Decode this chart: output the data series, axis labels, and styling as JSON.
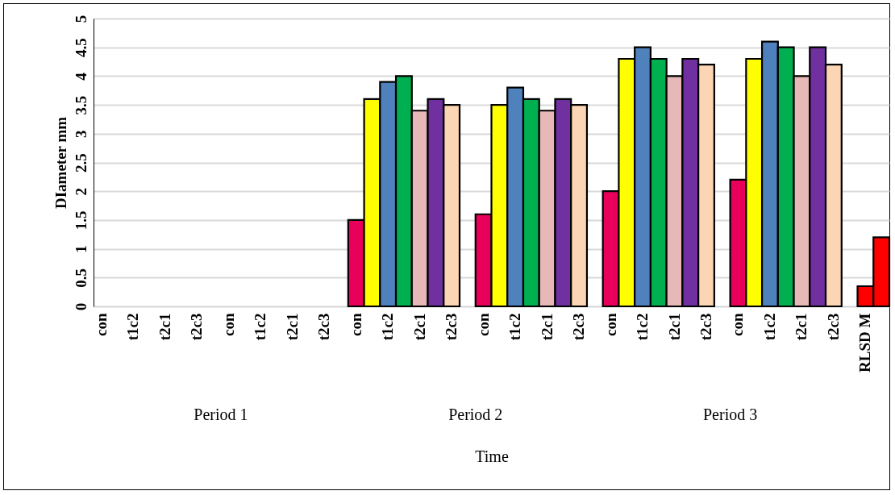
{
  "chart_data": {
    "type": "bar",
    "xlabel": "Time",
    "ylabel": "DIameter mm",
    "categories": [
      "con",
      null,
      "t1c2",
      null,
      "t2c1",
      null,
      "t2c3",
      null,
      "con",
      null,
      "t1c2",
      null,
      "t2c1",
      null,
      "t2c3",
      null,
      "con",
      null,
      "t1c2",
      null,
      "t2c1",
      null,
      "t2c3",
      null,
      "con",
      null,
      "t1c2",
      null,
      "t2c1",
      null,
      "t2c3",
      null,
      "con",
      null,
      "t1c2",
      null,
      "t2c1",
      null,
      "t2c3",
      null,
      "con",
      null,
      "t1c2",
      null,
      "t2c1",
      null,
      "t2c3",
      null,
      "RLSD M",
      null
    ],
    "values": [
      null,
      null,
      null,
      null,
      null,
      null,
      null,
      null,
      null,
      null,
      null,
      null,
      null,
      null,
      null,
      null,
      1.5,
      3.6,
      3.9,
      4.0,
      3.4,
      3.6,
      3.5,
      null,
      1.6,
      3.5,
      3.8,
      3.6,
      3.4,
      3.6,
      3.5,
      null,
      2.0,
      4.3,
      4.5,
      4.3,
      4.0,
      4.3,
      4.2,
      null,
      2.2,
      4.3,
      4.6,
      4.5,
      4.0,
      4.5,
      4.2,
      null,
      0.35,
      1.2
    ],
    "colors": [
      null,
      null,
      null,
      null,
      null,
      null,
      null,
      null,
      null,
      null,
      null,
      null,
      null,
      null,
      null,
      null,
      "#e8005a",
      "#ffff00",
      "#4f81bd",
      "#00b050",
      "#e6b8b7",
      "#7030a0",
      "#fcd5b4",
      null,
      "#e8005a",
      "#ffff00",
      "#4f81bd",
      "#00b050",
      "#e6b8b7",
      "#7030a0",
      "#fcd5b4",
      null,
      "#e8005a",
      "#ffff00",
      "#4f81bd",
      "#00b050",
      "#e6b8b7",
      "#7030a0",
      "#fcd5b4",
      null,
      "#e8005a",
      "#ffff00",
      "#4f81bd",
      "#00b050",
      "#e6b8b7",
      "#7030a0",
      "#fcd5b4",
      null,
      "#ff0000",
      "#ff0000"
    ],
    "annotations": [
      "Period 1",
      "Period 2",
      "Period 3"
    ],
    "ylim": [
      0,
      5
    ],
    "yticks": [
      0,
      0.5,
      1,
      1.5,
      2,
      2.5,
      3,
      3.5,
      4,
      4.5,
      5
    ],
    "grid": "y"
  }
}
